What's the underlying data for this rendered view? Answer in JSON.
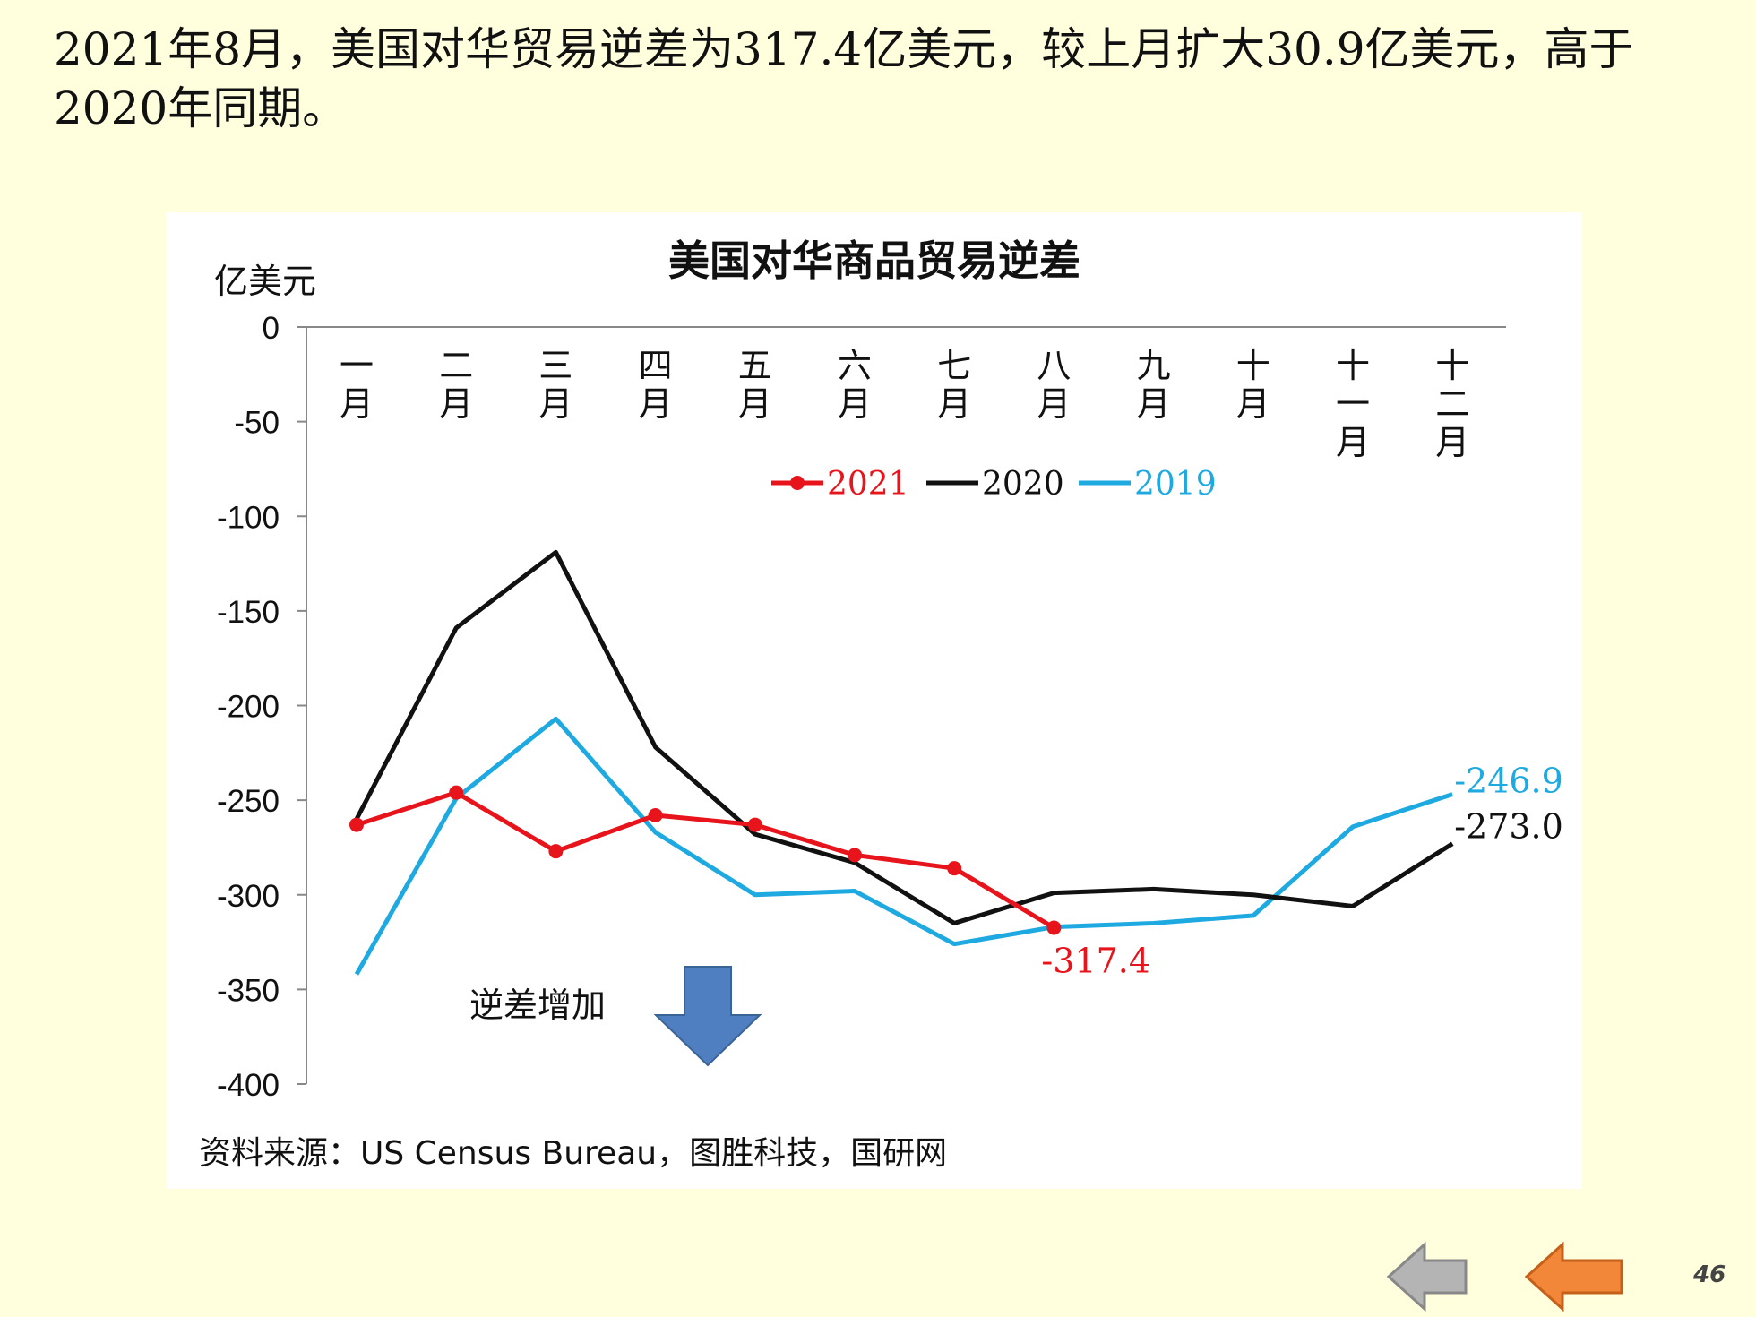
{
  "slide": {
    "headline": "2021年8月，美国对华贸易逆差为317.4亿美元，较上月扩大30.9亿美元，高于2020年同期。",
    "source": "资料来源：US Census Bureau，图胜科技，国研网",
    "page_number": "46",
    "prev_button_icon": "left-arrow-gray",
    "next_button_icon": "left-arrow-orange"
  },
  "chart_data": {
    "type": "line",
    "title": "美国对华商品贸易逆差",
    "ylabel": "亿美元",
    "ylim": [
      -400,
      0
    ],
    "yticks": [
      0,
      -50,
      -100,
      -150,
      -200,
      -250,
      -300,
      -350,
      -400
    ],
    "categories": [
      "一月",
      "二月",
      "三月",
      "四月",
      "五月",
      "六月",
      "七月",
      "八月",
      "九月",
      "十月",
      "十一月",
      "十二月"
    ],
    "legend_position": "top-center",
    "grid": false,
    "series": [
      {
        "name": "2021",
        "color": "#E8141B",
        "markers": true,
        "values": [
          -263,
          -246,
          -277,
          -258,
          -263,
          -279,
          -286,
          -317.4,
          null,
          null,
          null,
          null
        ]
      },
      {
        "name": "2020",
        "color": "#111111",
        "markers": false,
        "values": [
          -260,
          -159,
          -119,
          -222,
          -268,
          -283,
          -315,
          -299,
          -297,
          -300,
          -306,
          -273.0
        ]
      },
      {
        "name": "2019",
        "color": "#1EAAE1",
        "markers": false,
        "values": [
          -342,
          -249,
          -207,
          -267,
          -300,
          -298,
          -326,
          -317,
          -315,
          -311,
          -264,
          -246.9
        ]
      }
    ],
    "data_labels": [
      {
        "series": "2021",
        "index": 7,
        "text": "-317.4",
        "color": "#E8141B"
      },
      {
        "series": "2019",
        "index": 11,
        "text": "-246.9",
        "color": "#1EAAE1"
      },
      {
        "series": "2020",
        "index": 11,
        "text": "-273.0",
        "color": "#111111"
      }
    ],
    "annotation": {
      "text": "逆差增加",
      "arrow": "down",
      "arrow_color": "#4F7FC0"
    }
  }
}
